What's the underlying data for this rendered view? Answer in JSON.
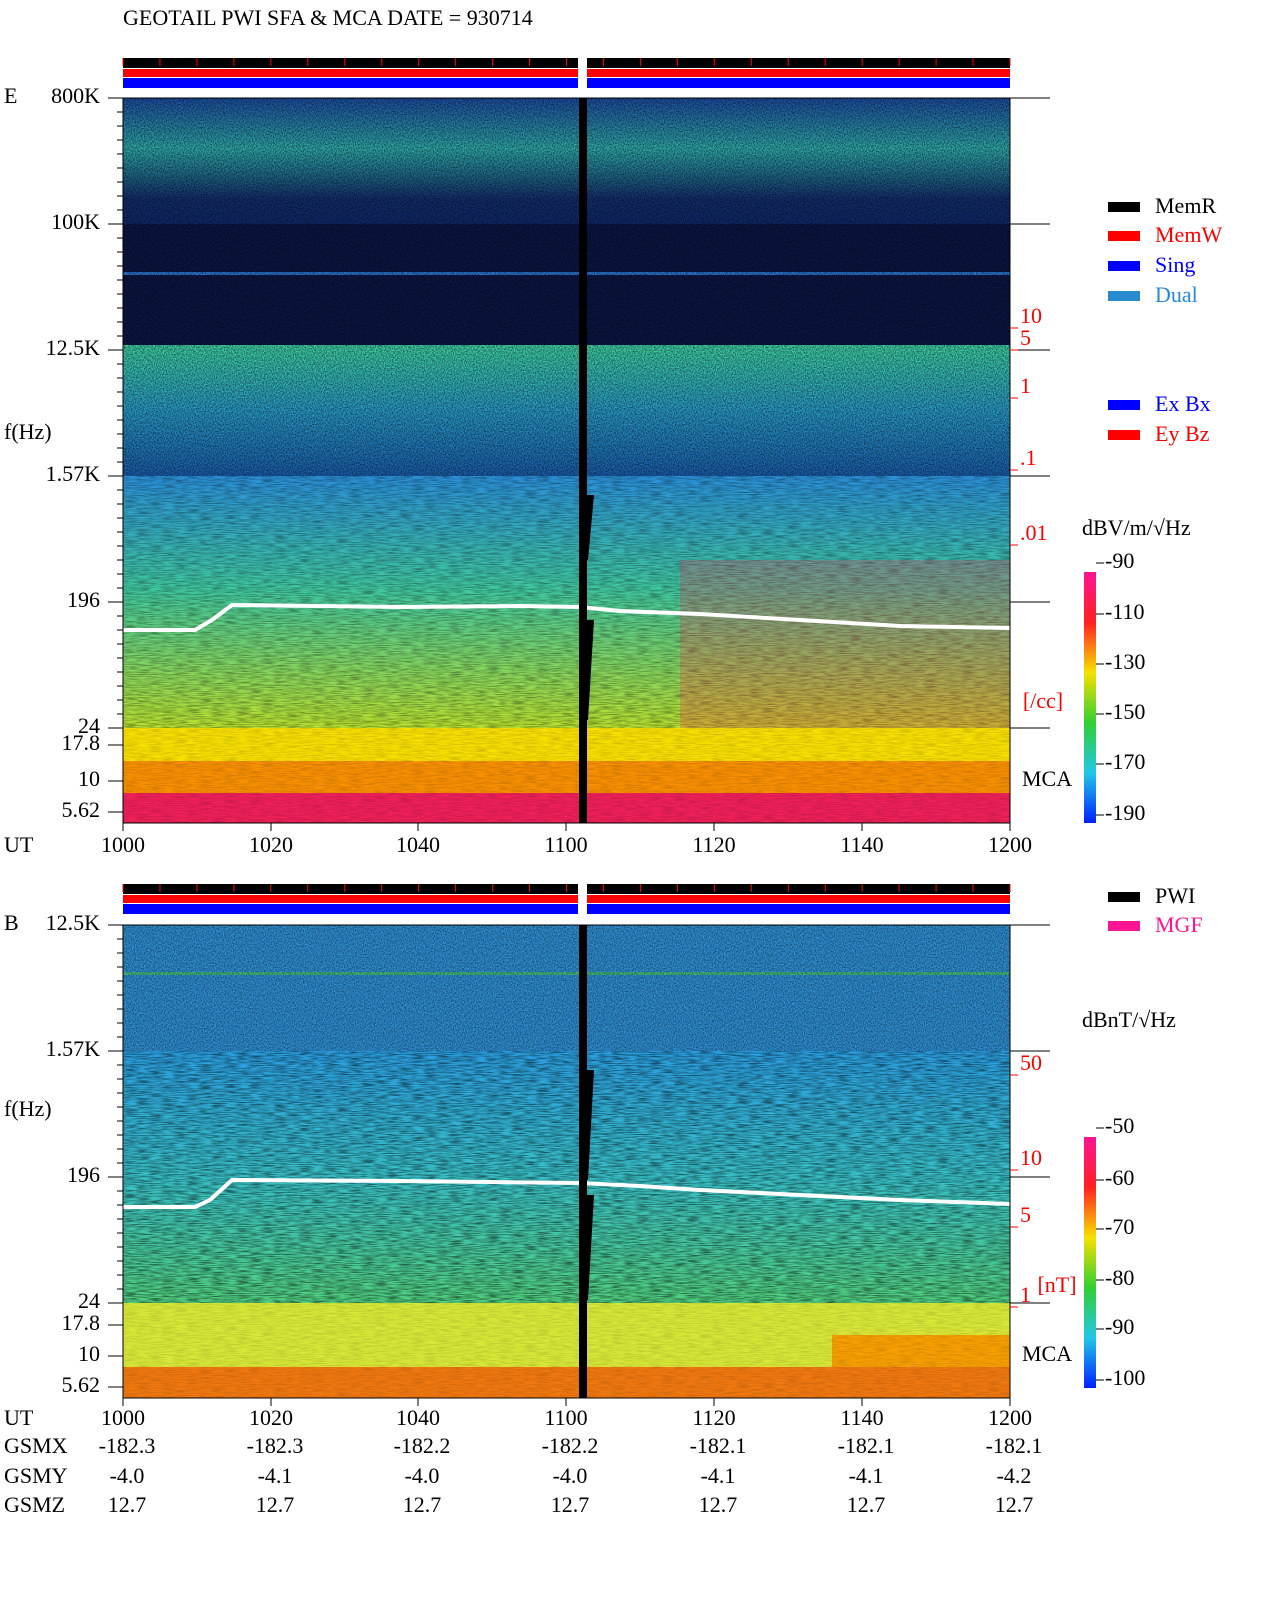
{
  "title": "GEOTAIL  PWI SFA & MCA   DATE = 930714",
  "panels": [
    {
      "component": "E",
      "freq_axis_label": "f(Hz)",
      "freq_ticks": [
        "800K",
        "100K",
        "12.5K",
        "1.57K",
        "196",
        "24",
        "17.8",
        "10",
        "5.62"
      ],
      "density_ticks": [
        "10",
        "5",
        "1",
        ".1",
        ".01"
      ],
      "density_unit": "[/cc]",
      "mca_label": "MCA",
      "colorbar_title": "dBV/m/√Hz",
      "colorbar_ticks": [
        "-90",
        "-110",
        "-130",
        "-150",
        "-170",
        "-190"
      ]
    },
    {
      "component": "B",
      "freq_axis_label": "f(Hz)",
      "freq_ticks": [
        "12.5K",
        "1.57K",
        "196",
        "24",
        "17.8",
        "10",
        "5.62"
      ],
      "density_ticks": [
        "50",
        "10",
        "5",
        "1"
      ],
      "density_unit": "[nT]",
      "mca_label": "MCA",
      "colorbar_title": "dBnT/√Hz",
      "colorbar_ticks": [
        "-50",
        "-60",
        "-70",
        "-80",
        "-90",
        "-100"
      ]
    }
  ],
  "legend_status": [
    {
      "label": "MemR",
      "color": "#000000"
    },
    {
      "label": "MemW",
      "color": "#ff0000"
    },
    {
      "label": "Sing",
      "color": "#0000ff"
    },
    {
      "label": "Dual",
      "color": "#2a8ad0"
    }
  ],
  "legend_antenna": [
    {
      "label": "Ex Bx",
      "color": "#0000ff"
    },
    {
      "label": "Ey Bz",
      "color": "#ff0000"
    }
  ],
  "legend_source": [
    {
      "label": "PWI",
      "color": "#000000"
    },
    {
      "label": "MGF",
      "color": "#ff1493"
    }
  ],
  "time_axis": {
    "label": "UT",
    "ticks": [
      "1000",
      "1020",
      "1040",
      "1100",
      "1120",
      "1140",
      "1200"
    ]
  },
  "orbit": [
    {
      "label": "GSMX",
      "values": [
        "-182.3",
        "-182.3",
        "-182.2",
        "-182.2",
        "-182.1",
        "-182.1",
        "-182.1"
      ]
    },
    {
      "label": "GSMY",
      "values": [
        "-4.0",
        "-4.1",
        "-4.0",
        "-4.0",
        "-4.1",
        "-4.1",
        "-4.2"
      ]
    },
    {
      "label": "GSMZ",
      "values": [
        "12.7",
        "12.7",
        "12.7",
        "12.7",
        "12.7",
        "12.7",
        "12.7"
      ]
    }
  ]
}
